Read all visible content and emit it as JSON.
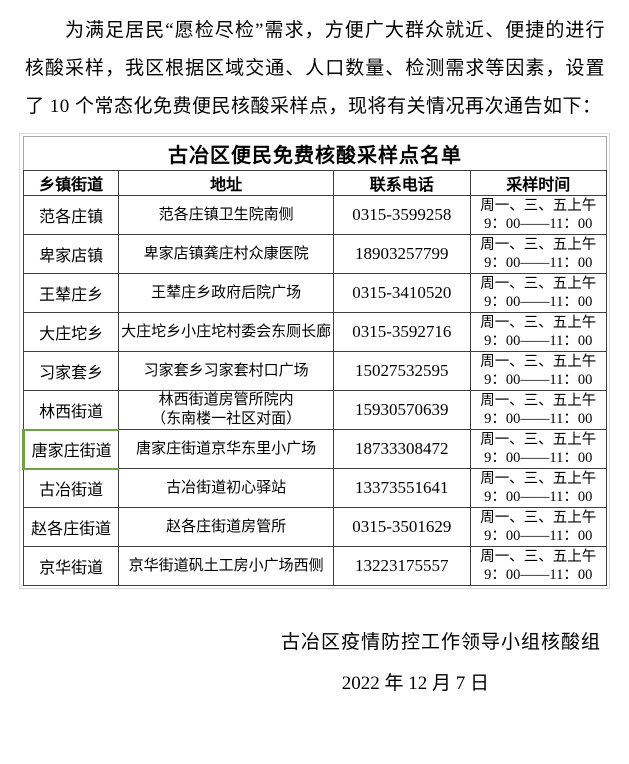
{
  "intro": "为满足居民“愿检尽检”需求，方便广大群众就近、便捷的进行核酸采样，我区根据区域交通、人口数量、检测需求等因素，设置了 10 个常态化免费便民核酸采样点，现将有关情况再次通告如下：",
  "table": {
    "title": "古冶区便民免费核酸采样点名单",
    "headers": [
      "乡镇街道",
      "地址",
      "联系电话",
      "采样时间"
    ],
    "rows": [
      {
        "town": "范各庄镇",
        "address": "范各庄镇卫生院南侧",
        "phone": "0315-3599258",
        "time1": "周一、三、五上午",
        "time2": "9：00——11：00",
        "selected": false
      },
      {
        "town": "卑家店镇",
        "address": "卑家店镇龚庄村众康医院",
        "phone": "18903257799",
        "time1": "周一、三、五上午",
        "time2": "9：00——11：00",
        "selected": false
      },
      {
        "town": "王辇庄乡",
        "address": "王辇庄乡政府后院广场",
        "phone": "0315-3410520",
        "time1": "周一、三、五上午",
        "time2": "9：00——11：00",
        "selected": false
      },
      {
        "town": "大庄坨乡",
        "address": "大庄坨乡小庄坨村委会东厕长廊",
        "phone": "0315-3592716",
        "time1": "周一、三、五上午",
        "time2": "9：00——11：00",
        "selected": false
      },
      {
        "town": "习家套乡",
        "address": "习家套乡习家套村口广场",
        "phone": "15027532595",
        "time1": "周一、三、五上午",
        "time2": "9：00——11：00",
        "selected": false
      },
      {
        "town": "林西街道",
        "address": "林西街道房管所院内",
        "address2": "（东南楼一社区对面）",
        "phone": "15930570639",
        "time1": "周一、三、五上午",
        "time2": "9：00——11：00",
        "selected": false
      },
      {
        "town": "唐家庄街道",
        "address": "唐家庄街道京华东里小广场",
        "phone": "18733308472",
        "time1": "周一、三、五上午",
        "time2": "9：00——11：00",
        "selected": true
      },
      {
        "town": "古冶街道",
        "address": "古冶街道初心驿站",
        "phone": "13373551641",
        "time1": "周一、三、五上午",
        "time2": "9：00——11：00",
        "selected": false
      },
      {
        "town": "赵各庄街道",
        "address": "赵各庄街道房管所",
        "phone": "0315-3501629",
        "time1": "周一、三、五上午",
        "time2": "9：00——11：00",
        "selected": false
      },
      {
        "town": "京华街道",
        "address": "京华街道矾土工房小广场西侧",
        "phone": "13223175557",
        "time1": "周一、三、五上午",
        "time2": "9：00——11：00",
        "selected": false
      }
    ]
  },
  "footer": {
    "org": "古冶区疫情防控工作领导小组核酸组",
    "date": "2022 年 12 月 7 日"
  },
  "colors": {
    "selection_green": "#6ca244",
    "border_dark": "#3f3f3f",
    "border_light_title": "#a6a6a6",
    "gridline": "#d9d9d9"
  }
}
